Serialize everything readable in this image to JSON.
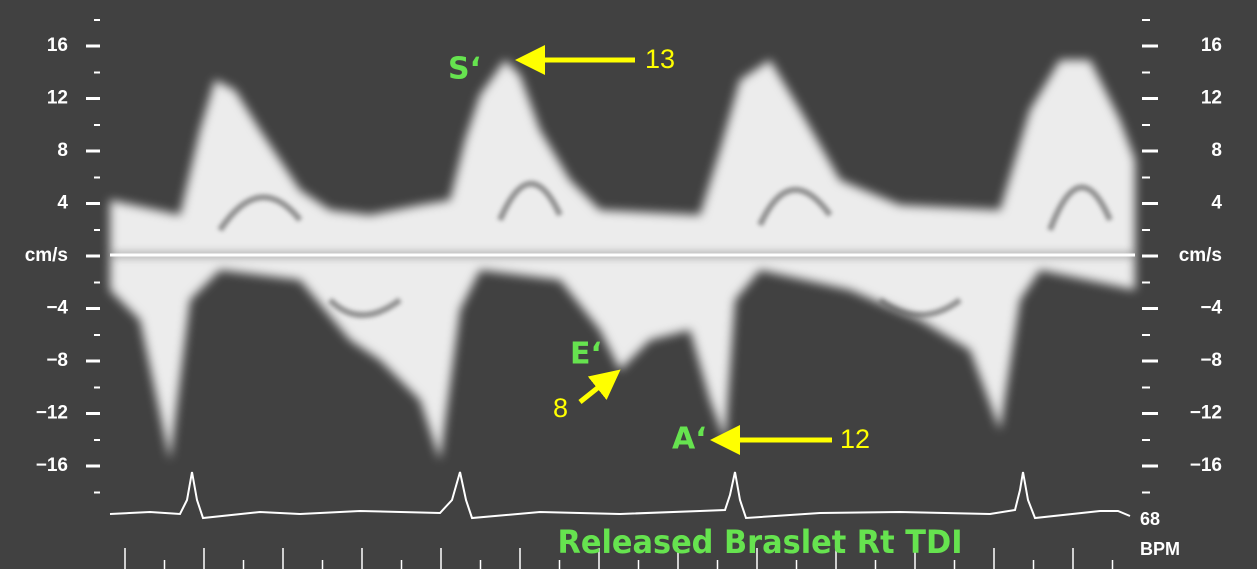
{
  "left_axis": {
    "labels": [
      "16",
      "12",
      "8",
      "4",
      "cm/s",
      "−4",
      "−8",
      "−12",
      "−16"
    ]
  },
  "right_axis": {
    "labels": [
      "16",
      "12",
      "8",
      "4",
      "cm/s",
      "−4",
      "−8",
      "−12",
      "−16"
    ]
  },
  "annotations": [
    {
      "label": "S‘",
      "value": "13"
    },
    {
      "label": "E‘",
      "value": "8"
    },
    {
      "label": "A‘",
      "value": "12"
    }
  ],
  "caption": "Released Braslet Rt TDI",
  "heart_rate": {
    "value": "68",
    "unit": "BPM"
  }
}
